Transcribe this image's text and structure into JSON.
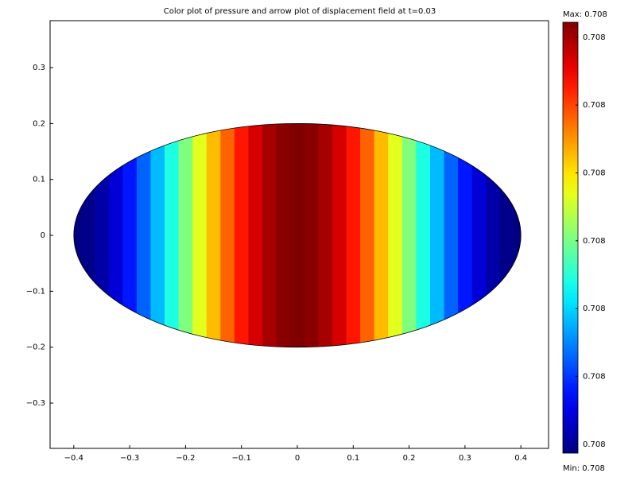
{
  "chart_data": {
    "type": "heatmap",
    "title": "Color plot of pressure and arrow plot of displacement field at t=0.03",
    "colormap": "jet",
    "ellipse_radii": [
      0.4,
      0.2
    ],
    "x": [
      -0.4,
      -0.375,
      -0.35,
      -0.325,
      -0.3,
      -0.275,
      -0.25,
      -0.225,
      -0.2,
      -0.175,
      -0.15,
      -0.125,
      -0.1,
      -0.075,
      -0.05,
      -0.025,
      0,
      0.025,
      0.05,
      0.075,
      0.1,
      0.125,
      0.15,
      0.175,
      0.2,
      0.225,
      0.25,
      0.275,
      0.3,
      0.325,
      0.35,
      0.375,
      0.4
    ],
    "values": [
      0.7079987,
      0.7079993,
      0.7080011,
      0.7080041,
      0.708008,
      0.7080128,
      0.7080183,
      0.7080243,
      0.7080305,
      0.7080366,
      0.7080426,
      0.7080481,
      0.7080529,
      0.7080568,
      0.7080598,
      0.7080616,
      0.7080622,
      0.7080616,
      0.7080598,
      0.7080568,
      0.7080529,
      0.7080481,
      0.7080426,
      0.7080366,
      0.7080305,
      0.7080243,
      0.7080183,
      0.7080128,
      0.708008,
      0.7080041,
      0.7080011,
      0.7079993,
      0.7079987
    ],
    "xlim": [
      -0.4424,
      0.4495
    ],
    "ylim": [
      -0.381,
      0.384
    ],
    "xticks": [
      {
        "value": -0.4,
        "label": "−0.4"
      },
      {
        "value": -0.3,
        "label": "−0.3"
      },
      {
        "value": -0.2,
        "label": "−0.2"
      },
      {
        "value": -0.1,
        "label": "−0.1"
      },
      0,
      0.1,
      0.2,
      0.3,
      0.4
    ],
    "yticks": [
      {
        "value": -0.3,
        "label": "−0.3"
      },
      {
        "value": -0.2,
        "label": "−0.2"
      },
      {
        "value": -0.1,
        "label": "−0.1"
      },
      0,
      0.1,
      0.2,
      0.3
    ],
    "clim": [
      0.7079987,
      0.7080622
    ],
    "colorbar_ticks": [
      {
        "value": 0.708,
        "label": "0.708"
      },
      {
        "value": 0.70801,
        "label": "0.708"
      },
      {
        "value": 0.70802,
        "label": "0.708"
      },
      {
        "value": 0.70803,
        "label": "0.708"
      },
      {
        "value": 0.70804,
        "label": "0.708"
      },
      {
        "value": 0.70805,
        "label": "0.708"
      },
      {
        "value": 0.70806,
        "label": "0.708"
      }
    ],
    "colorbar_max_label": "Max: 0.708",
    "colorbar_min_label": "Min: 0.708"
  }
}
